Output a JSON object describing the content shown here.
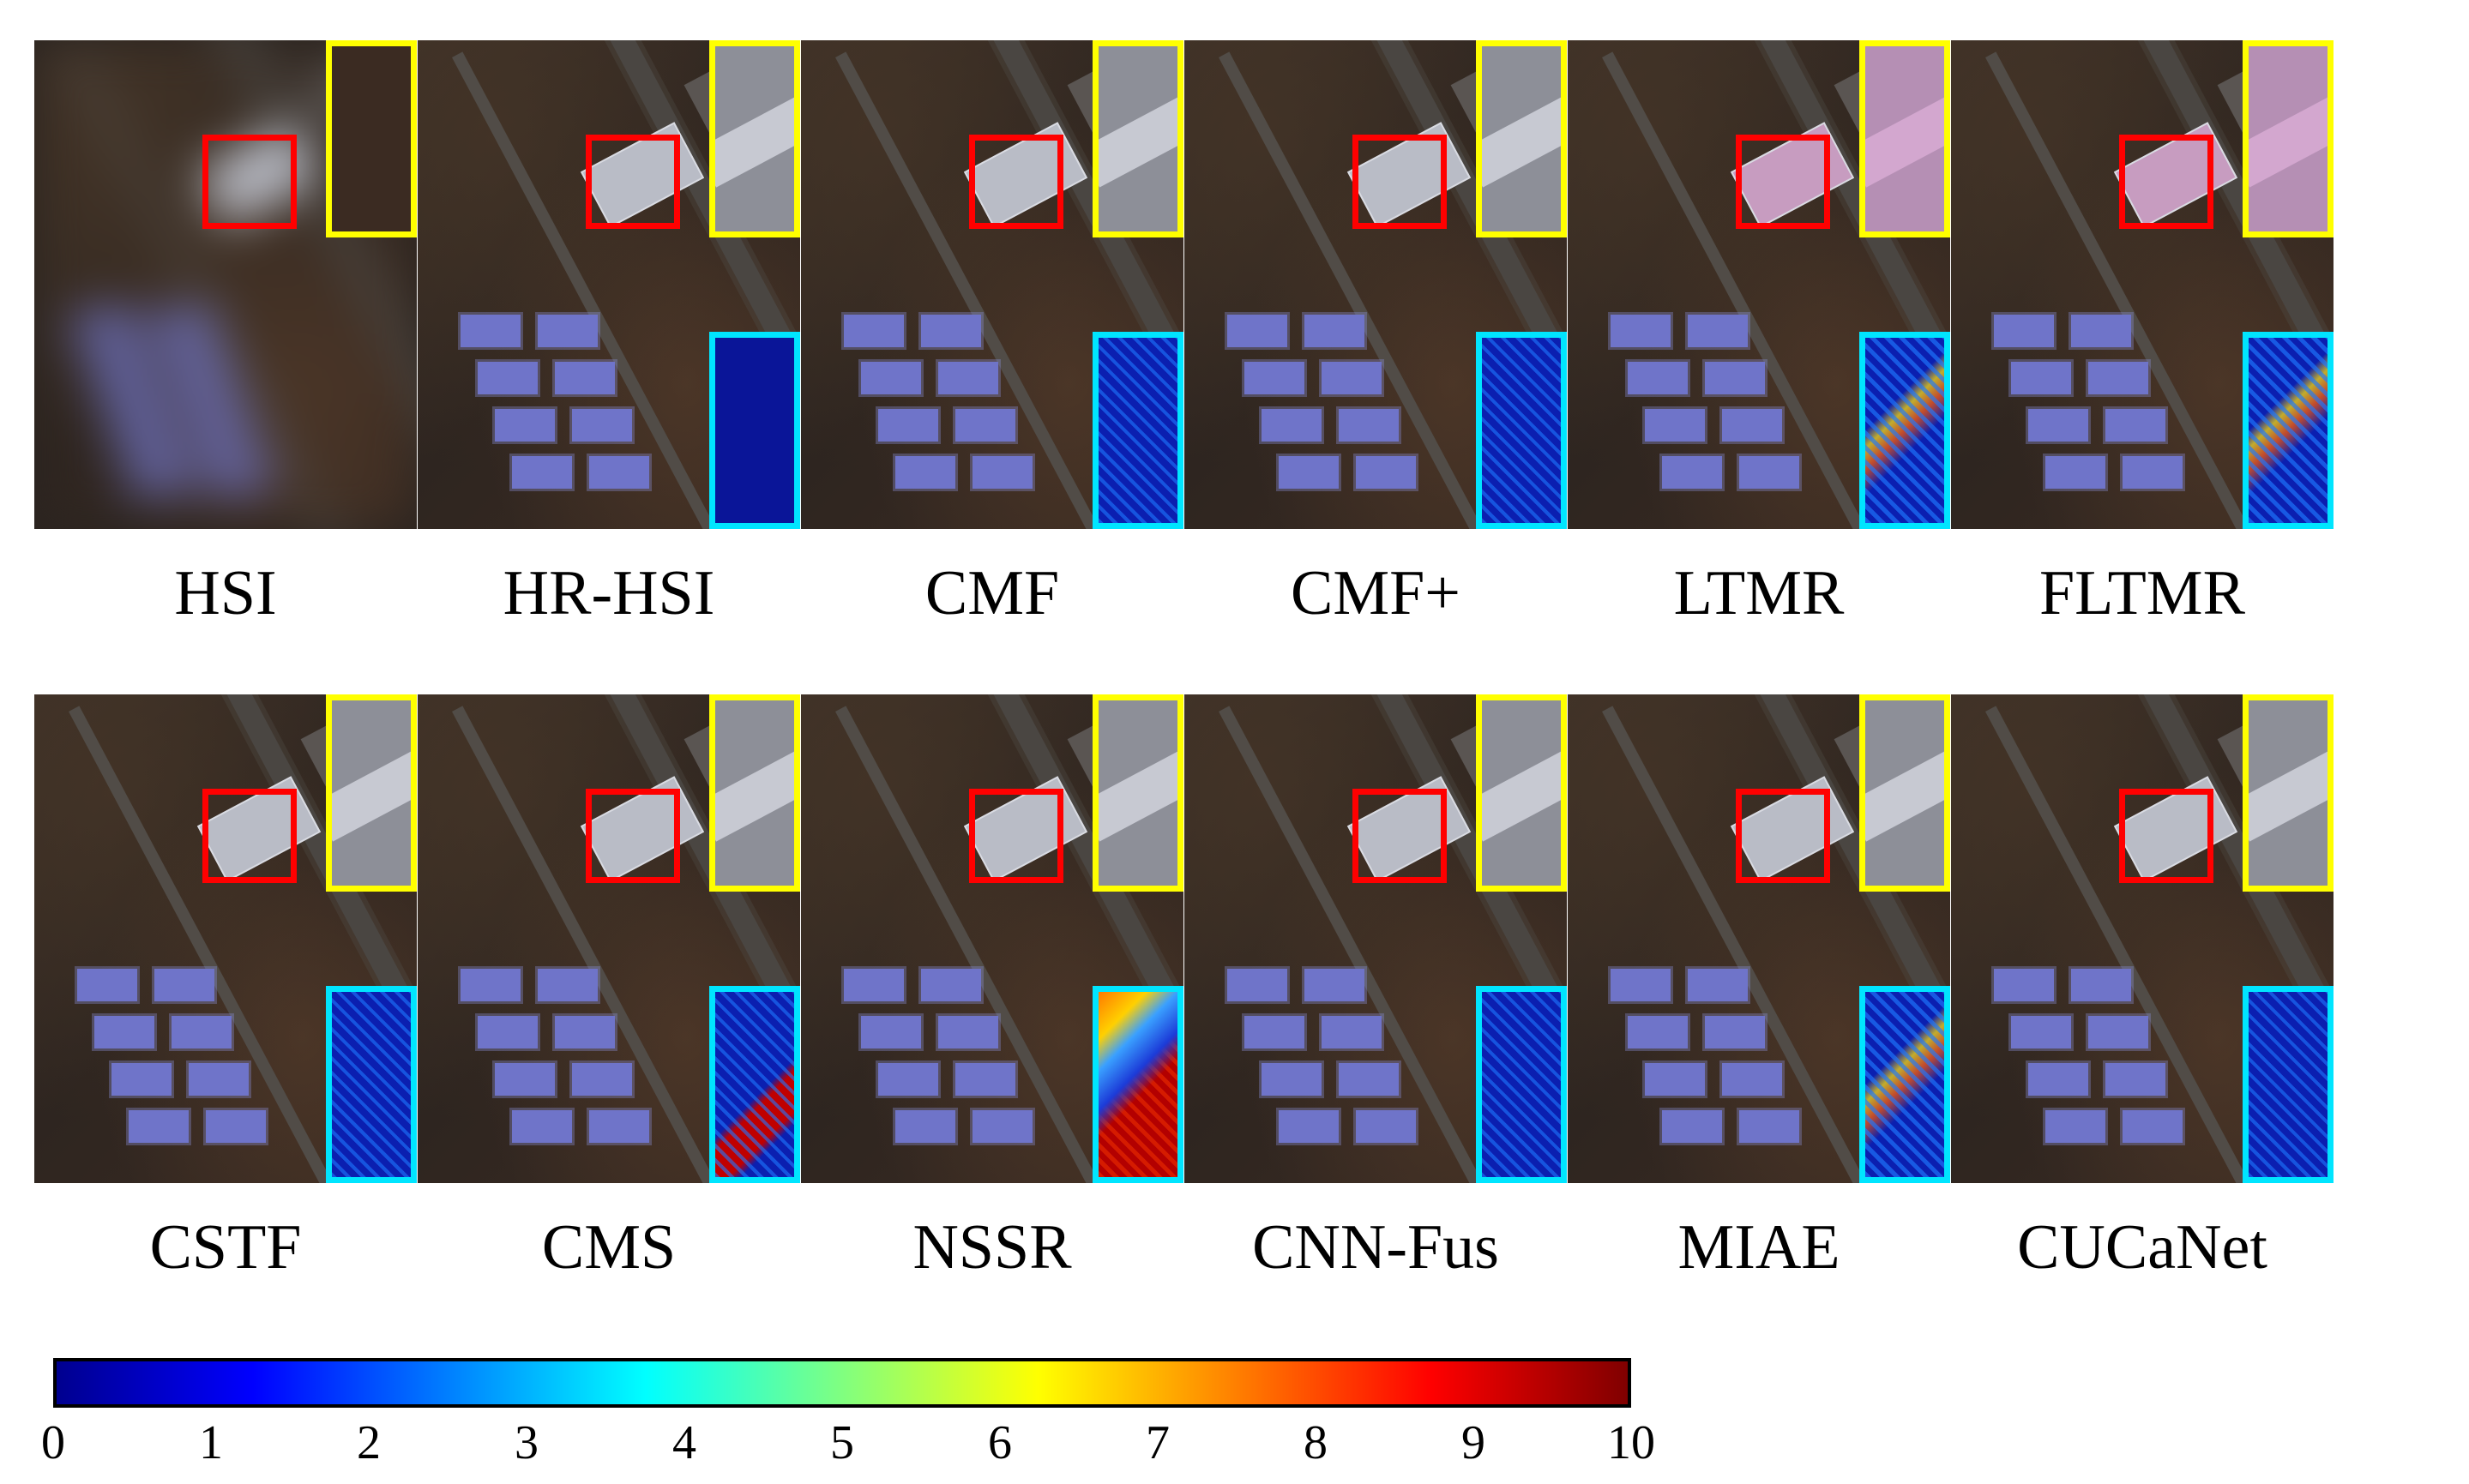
{
  "figure": {
    "rows": [
      {
        "labels": [
          "HSI",
          "HR-HSI",
          "CMF",
          "CMF+",
          "LTMR",
          "FLTMR"
        ]
      },
      {
        "labels": [
          "CSTF",
          "CMS",
          "NSSR",
          "CNN-Fus",
          "MIAE",
          "CUCaNet"
        ]
      }
    ]
  },
  "colorbar": {
    "min": 0,
    "max": 10,
    "ticks": [
      "0",
      "1",
      "2",
      "3",
      "4",
      "5",
      "6",
      "7",
      "8",
      "9",
      "10"
    ],
    "colors": [
      "#00008f",
      "#0000ff",
      "#0080ff",
      "#00ffff",
      "#80ff80",
      "#ffff00",
      "#ff8000",
      "#ff0000",
      "#800000"
    ]
  },
  "overlays": {
    "roi_color": "#ff0000",
    "zoom_color": "#ffff00",
    "error_map_color": "#00e5ff"
  }
}
